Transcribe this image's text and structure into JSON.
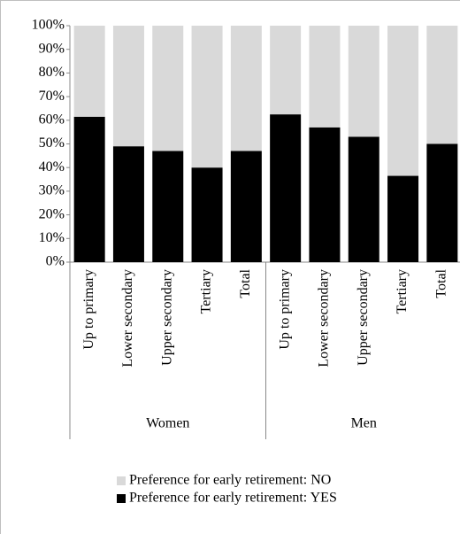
{
  "chart_data": {
    "type": "stacked_bar",
    "categories": [
      "Up to primary",
      "Lower secondary",
      "Upper secondary",
      "Tertiary",
      "Total",
      "Up to primary",
      "Lower secondary",
      "Upper secondary",
      "Tertiary",
      "Total"
    ],
    "groups": [
      "Women",
      "Men"
    ],
    "series": [
      {
        "name": "Preference for early retirement: YES",
        "color": "#000000",
        "values": [
          61.5,
          49,
          47,
          40,
          47,
          62.5,
          57,
          53,
          36.5,
          50
        ]
      },
      {
        "name": "Preference for early retirement: NO",
        "color": "#d9d9d9",
        "values": [
          38.5,
          51,
          53,
          60,
          53,
          37.5,
          43,
          47,
          63.5,
          50
        ]
      }
    ],
    "ylim": [
      0,
      100
    ],
    "yticks": [
      {
        "value": 0,
        "label": "0%"
      },
      {
        "value": 10,
        "label": "10%"
      },
      {
        "value": 20,
        "label": "20%"
      },
      {
        "value": 30,
        "label": "30%"
      },
      {
        "value": 40,
        "label": "40%"
      },
      {
        "value": 50,
        "label": "50%"
      },
      {
        "value": 60,
        "label": "60%"
      },
      {
        "value": 70,
        "label": "70%"
      },
      {
        "value": 80,
        "label": "80%"
      },
      {
        "value": 90,
        "label": "90%"
      },
      {
        "value": 100,
        "label": "100%"
      }
    ]
  }
}
